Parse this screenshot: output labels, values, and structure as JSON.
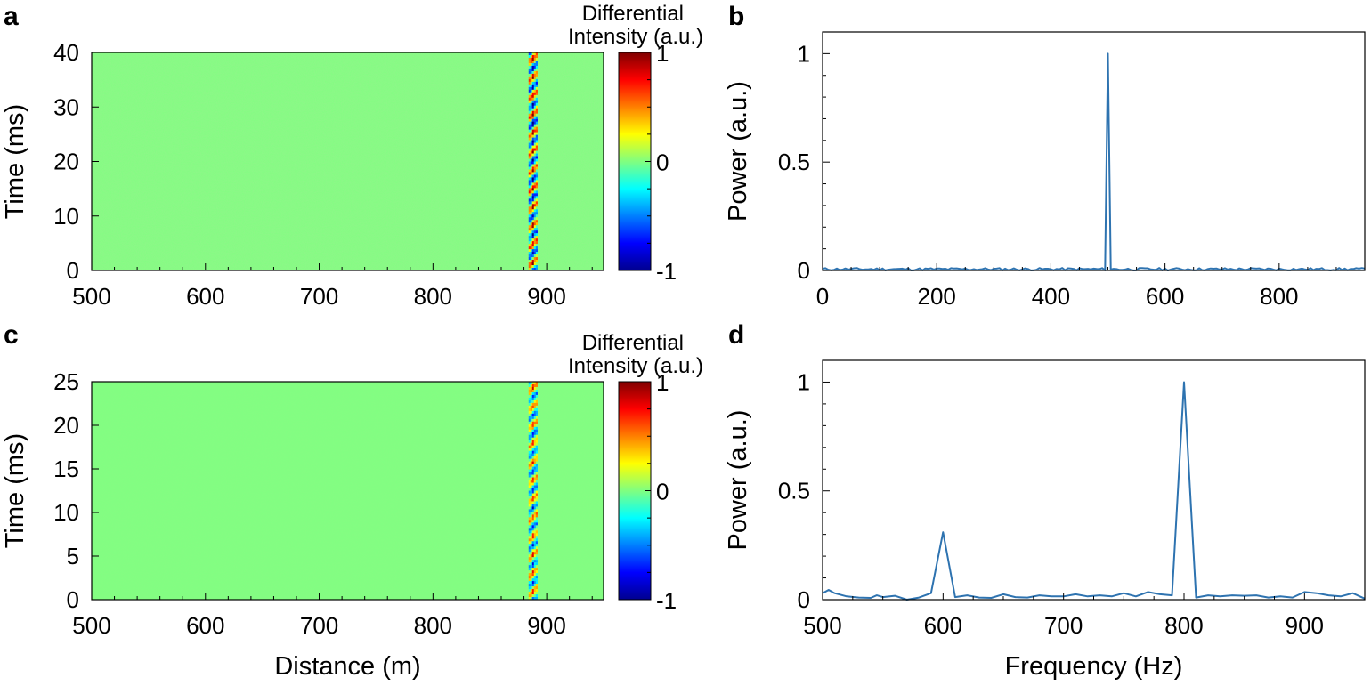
{
  "chart_data": [
    {
      "panel": "a",
      "type": "heatmap",
      "xlabel": "",
      "ylabel": "Time (ms)",
      "xlim": [
        500,
        950
      ],
      "ylim": [
        0,
        40
      ],
      "xticks": [
        500,
        600,
        700,
        800,
        900
      ],
      "yticks": [
        0,
        10,
        20,
        30,
        40
      ],
      "colorbar": {
        "title": [
          "Differential",
          "Intensity (a.u.)"
        ],
        "range": [
          -1,
          1
        ],
        "ticks": [
          "1",
          "0",
          "-1"
        ],
        "colormap": "jet"
      },
      "background_value": 0,
      "vibration_location_m": 888,
      "vibration_frequency_hz": 500
    },
    {
      "panel": "b",
      "type": "line",
      "xlabel": "",
      "ylabel": "Power (a.u.)",
      "xlim": [
        0,
        950
      ],
      "ylim": [
        0,
        1.1
      ],
      "xticks": [
        0,
        200,
        400,
        600,
        800
      ],
      "yticks": [
        0,
        0.5,
        1
      ],
      "ytick_labels": [
        "0",
        "0.5",
        "1"
      ],
      "color": "#2e73b0",
      "peaks": [
        {
          "x": 500,
          "y": 1
        }
      ]
    },
    {
      "panel": "c",
      "type": "heatmap",
      "xlabel": "Distance (m)",
      "ylabel": "Time (ms)",
      "xlim": [
        500,
        950
      ],
      "ylim": [
        0,
        25
      ],
      "xticks": [
        500,
        600,
        700,
        800,
        900
      ],
      "yticks": [
        0,
        5,
        10,
        15,
        20,
        25
      ],
      "colorbar": {
        "title": [
          "Differential",
          "Intensity (a.u.)"
        ],
        "range": [
          -1,
          1
        ],
        "ticks": [
          "1",
          "0",
          "-1"
        ],
        "colormap": "jet"
      },
      "background_value": 0,
      "vibration_location_m": 888,
      "vibration_frequency_hz": [
        600,
        800
      ]
    },
    {
      "panel": "d",
      "type": "line",
      "xlabel": "Frequency (Hz)",
      "ylabel": "Power (a.u.)",
      "xlim": [
        500,
        950
      ],
      "ylim": [
        0,
        1.1
      ],
      "xticks": [
        500,
        600,
        700,
        800,
        900
      ],
      "yticks": [
        0,
        0.5,
        1
      ],
      "ytick_labels": [
        "0",
        "0.5",
        "1"
      ],
      "color": "#2e73b0",
      "x": [
        500,
        505,
        510,
        520,
        530,
        540,
        545,
        550,
        560,
        570,
        580,
        590,
        600,
        610,
        620,
        630,
        640,
        650,
        660,
        670,
        680,
        690,
        700,
        710,
        720,
        730,
        740,
        750,
        760,
        770,
        780,
        790,
        800,
        810,
        820,
        830,
        840,
        850,
        860,
        870,
        880,
        890,
        900,
        910,
        920,
        930,
        940,
        950
      ],
      "y": [
        0.03,
        0.045,
        0.03,
        0.015,
        0.01,
        0.008,
        0.02,
        0.012,
        0.018,
        0.0,
        0.01,
        0.03,
        0.31,
        0.012,
        0.02,
        0.01,
        0.008,
        0.025,
        0.012,
        0.01,
        0.02,
        0.015,
        0.015,
        0.025,
        0.015,
        0.02,
        0.015,
        0.03,
        0.015,
        0.035,
        0.025,
        0.02,
        1.0,
        0.01,
        0.02,
        0.015,
        0.02,
        0.018,
        0.02,
        0.01,
        0.015,
        0.01,
        0.035,
        0.03,
        0.02,
        0.015,
        0.03,
        0.005
      ]
    }
  ]
}
